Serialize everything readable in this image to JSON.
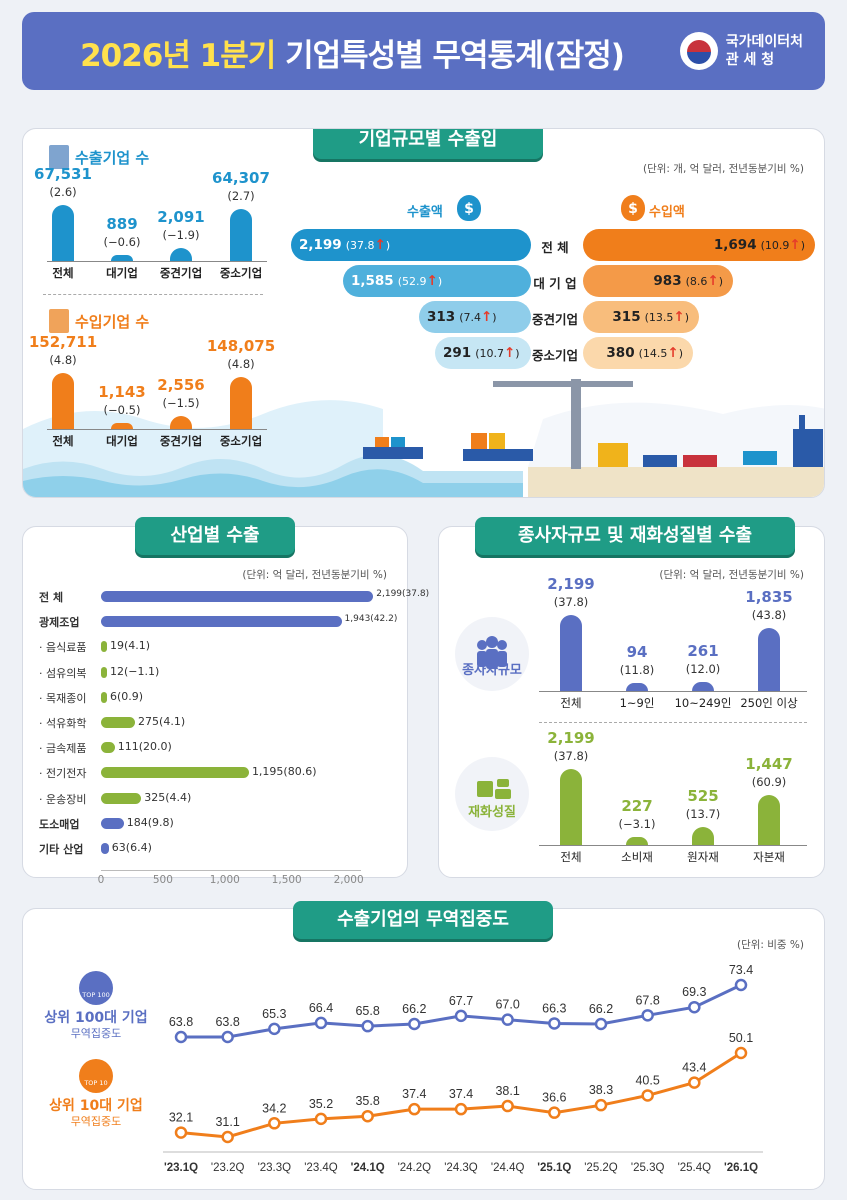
{
  "header": {
    "title_year": "2026년 1분기",
    "title_rest": "기업특성별 무역통계(잠정)",
    "agency_line1": "국가데이터처",
    "agency_line2": "관    세    청"
  },
  "colors": {
    "blue": "#1e93cc",
    "orange": "#f07e1b",
    "purple": "#5a6fc2",
    "green": "#8bb33a",
    "teal": "#1f9c86"
  },
  "scale": {
    "title": "기업규모별 수출입",
    "unit": "(단위: 개, 억 달러, 전년동분기비 %)",
    "exporters": {
      "title": "수출기업 수",
      "categories": [
        "전체",
        "대기업",
        "중견기업",
        "중소기업"
      ],
      "values": [
        "67,531",
        "889",
        "2,091",
        "64,307"
      ],
      "changes": [
        "(2.6)",
        "(−0.6)",
        "(−1.9)",
        "(2.7)"
      ]
    },
    "importers": {
      "title": "수입기업 수",
      "categories": [
        "전체",
        "대기업",
        "중견기업",
        "중소기업"
      ],
      "values": [
        "152,711",
        "1,143",
        "2,556",
        "148,075"
      ],
      "changes": [
        "(4.8)",
        "(−0.5)",
        "(−1.5)",
        "(4.8)"
      ]
    },
    "export_label": "수출액",
    "import_label": "수입액",
    "row_labels": [
      "전    체",
      "대 기 업",
      "중견기업",
      "중소기업"
    ],
    "exports": [
      {
        "value": "2,199",
        "pct": "(37.8",
        "close": ")"
      },
      {
        "value": "1,585",
        "pct": "(52.9",
        "close": ")"
      },
      {
        "value": "313",
        "pct": "(7.4",
        "close": ")"
      },
      {
        "value": "291",
        "pct": "(10.7",
        "close": ")"
      }
    ],
    "imports": [
      {
        "value": "1,694",
        "pct": "(10.9",
        "close": ")"
      },
      {
        "value": "983",
        "pct": "(8.6",
        "close": ")"
      },
      {
        "value": "315",
        "pct": "(13.5",
        "close": ")"
      },
      {
        "value": "380",
        "pct": "(14.5",
        "close": ")"
      }
    ],
    "arrow": "↑"
  },
  "industry": {
    "title": "산업별 수출",
    "unit": "(단위: 억 달러, 전년동분기비 %)",
    "rows": [
      {
        "label": "전      체",
        "value": 2199,
        "text": "2,199(37.8)",
        "main": true,
        "color": "#5a6fc2"
      },
      {
        "label": "광제조업",
        "value": 1943,
        "text": "1,943(42.2)",
        "main": true,
        "color": "#5a6fc2"
      },
      {
        "label": "· 음식료품",
        "value": 19,
        "text": "19(4.1)",
        "main": false,
        "color": "#8bb33a"
      },
      {
        "label": "· 섬유의복",
        "value": 12,
        "text": "12(−1.1)",
        "main": false,
        "color": "#8bb33a"
      },
      {
        "label": "· 목재종이",
        "value": 6,
        "text": "6(0.9)",
        "main": false,
        "color": "#8bb33a"
      },
      {
        "label": "· 석유화학",
        "value": 275,
        "text": "275(4.1)",
        "main": false,
        "color": "#8bb33a"
      },
      {
        "label": "· 금속제품",
        "value": 111,
        "text": "111(20.0)",
        "main": false,
        "color": "#8bb33a"
      },
      {
        "label": "· 전기전자",
        "value": 1195,
        "text": "1,195(80.6)",
        "main": false,
        "color": "#8bb33a"
      },
      {
        "label": "· 운송장비",
        "value": 325,
        "text": "325(4.4)",
        "main": false,
        "color": "#8bb33a"
      },
      {
        "label": "도소매업",
        "value": 184,
        "text": "184(9.8)",
        "main": true,
        "color": "#5a6fc2"
      },
      {
        "label": "기타 산업",
        "value": 63,
        "text": "63(6.4)",
        "main": true,
        "color": "#5a6fc2"
      }
    ],
    "ticks": [
      "0",
      "500",
      "1,000",
      "1,500",
      "2,000"
    ],
    "xlim": [
      0,
      2100
    ]
  },
  "employees": {
    "title": "종사자규모 및 재화성질별 수출",
    "unit": "(단위: 억 달러, 전년동분기비 %)",
    "size_label": "종사자규모",
    "size": {
      "categories": [
        "전체",
        "1~9인",
        "10~249인",
        "250인 이상"
      ],
      "values": [
        "2,199",
        "94",
        "261",
        "1,835"
      ],
      "nums": [
        2199,
        94,
        261,
        1835
      ],
      "changes": [
        "(37.8)",
        "(11.8)",
        "(12.0)",
        "(43.8)"
      ]
    },
    "goods_label": "재화성질",
    "goods": {
      "categories": [
        "전체",
        "소비재",
        "원자재",
        "자본재"
      ],
      "values": [
        "2,199",
        "227",
        "525",
        "1,447"
      ],
      "nums": [
        2199,
        227,
        525,
        1447
      ],
      "changes": [
        "(37.8)",
        "(−3.1)",
        "(13.7)",
        "(60.9)"
      ]
    }
  },
  "chart_data": {
    "type": "line",
    "title": "수출기업의 무역집중도",
    "unit": "(단위: 비중 %)",
    "categories": [
      "'23.1Q",
      "'23.2Q",
      "'23.3Q",
      "'23.4Q",
      "'24.1Q",
      "'24.2Q",
      "'24.3Q",
      "'24.4Q",
      "'25.1Q",
      "'25.2Q",
      "'25.3Q",
      "'25.4Q",
      "'26.1Q"
    ],
    "series": [
      {
        "name": "상위 100대 기업",
        "sub": "무역집중도",
        "badge": "TOP 100",
        "color": "#5a6fc2",
        "values": [
          63.8,
          63.8,
          65.3,
          66.4,
          65.8,
          66.2,
          67.7,
          67.0,
          66.3,
          66.2,
          67.8,
          69.3,
          73.4
        ]
      },
      {
        "name": "상위 10대 기업",
        "sub": "무역집중도",
        "badge": "TOP 10",
        "color": "#f07e1b",
        "values": [
          32.1,
          31.1,
          34.2,
          35.2,
          35.8,
          37.4,
          37.4,
          38.1,
          36.6,
          38.3,
          40.5,
          43.4,
          50.1
        ]
      }
    ]
  }
}
